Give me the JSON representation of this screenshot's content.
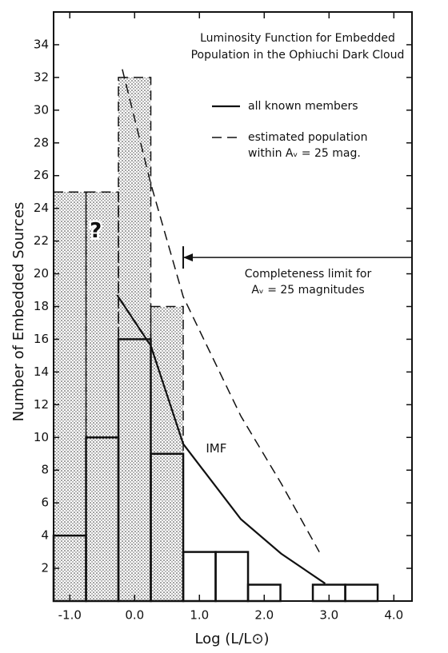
{
  "chart_data": {
    "type": "histogram",
    "title": [
      "Luminosity Function for Embedded",
      "Population in the Ophiuchi Dark Cloud"
    ],
    "x_label": "Log (L/L⊙)",
    "y_label": "Number of Embedded Sources",
    "bins": [
      -1.25,
      -0.75,
      -0.25,
      0.25,
      0.75,
      1.25,
      1.75,
      2.25,
      2.75,
      3.25,
      3.75
    ],
    "series": [
      {
        "name": "estimated population within Aᵥ = 25 mag.",
        "color": "#111111",
        "line_style": "dashed",
        "fill": "stipple",
        "values": [
          25,
          25,
          32,
          18,
          null,
          null,
          null,
          null,
          null,
          null
        ]
      },
      {
        "name": "all known members",
        "color": "#111111",
        "line_style": "solid",
        "values": [
          4,
          10,
          16,
          9,
          3,
          3,
          1,
          0,
          1,
          1
        ]
      }
    ],
    "curves": [
      {
        "line_style": "dashed",
        "x": [
          -0.19,
          0.25,
          0.75,
          1.64,
          2.26,
          2.85
        ],
        "y": [
          32.5,
          25.5,
          18.6,
          11.3,
          7.2,
          3.0
        ]
      },
      {
        "label": "IMF",
        "line_style": "solid",
        "x": [
          -0.27,
          0.25,
          0.75,
          1.64,
          2.26,
          2.94
        ],
        "y": [
          18.7,
          15.6,
          9.6,
          5.0,
          2.9,
          1.07
        ]
      }
    ],
    "completeness": {
      "x": 0.75,
      "y": 21,
      "text": [
        "Completeness limit for",
        "Aᵥ = 25 magnitudes"
      ]
    },
    "question_mark": {
      "text": "?",
      "x": -0.6,
      "y": 22.6
    },
    "xlim": [
      -1.25,
      4.28
    ],
    "ylim": [
      0,
      36
    ],
    "xticks": [
      {
        "value": -1,
        "label": "-1.0"
      },
      {
        "value": 0,
        "label": "0.0"
      },
      {
        "value": 1,
        "label": "1.0"
      },
      {
        "value": 2,
        "label": "2.0"
      },
      {
        "value": 3,
        "label": "3.0"
      },
      {
        "value": 4,
        "label": "4.0"
      }
    ],
    "yticks": [
      2,
      4,
      6,
      8,
      10,
      12,
      14,
      16,
      18,
      20,
      22,
      24,
      26,
      28,
      30,
      32,
      34
    ],
    "grid": false
  }
}
